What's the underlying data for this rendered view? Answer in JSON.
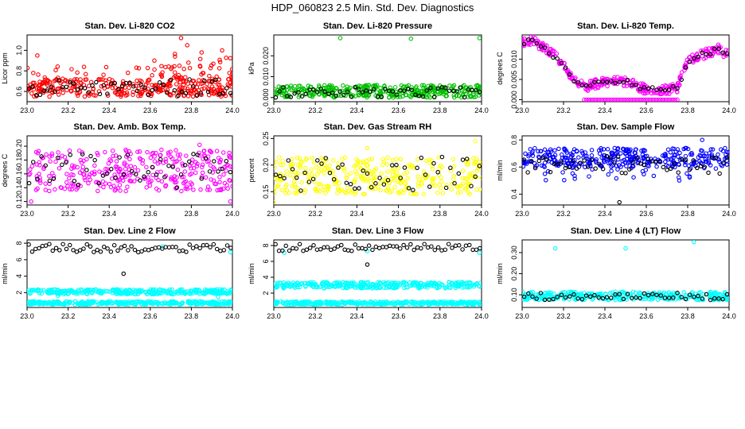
{
  "title": "HDP_060823  2.5 Min. Std. Dev. Diagnostics",
  "chart_data": [
    {
      "type": "scatter",
      "title": "Stan. Dev. Li-820 CO2",
      "ylabel": "Licor ppm",
      "color": "#ff0000",
      "xlim": [
        23.0,
        24.0
      ],
      "ylim": [
        0.5,
        1.15
      ],
      "xticks": [
        "23.0",
        "23.2",
        "23.4",
        "23.6",
        "23.8",
        "24.0"
      ],
      "yticks": [
        {
          "v": 0.6,
          "label": "0.6"
        },
        {
          "v": 0.8,
          "label": "0.8"
        },
        {
          "v": 1.0,
          "label": "1.0"
        }
      ],
      "bands": [
        {
          "lo": 0.55,
          "hi": 0.72,
          "n": 300
        },
        {
          "lo": 0.72,
          "hi": 0.85,
          "n": 40
        }
      ],
      "trend": {
        "start": 23.7,
        "end": 24.0,
        "add": 0.25,
        "n": 40
      },
      "outliers": [
        [
          23.75,
          1.12
        ],
        [
          23.85,
          0.98
        ],
        [
          23.78,
          1.05
        ],
        [
          23.95,
          1.0
        ],
        [
          23.05,
          0.95
        ],
        [
          23.62,
          0.9
        ]
      ],
      "black_band": {
        "lo": 0.55,
        "hi": 0.72,
        "n": 55
      }
    },
    {
      "type": "scatter",
      "title": "Stan. Dev. Li-820 Pressure",
      "ylabel": "kPa",
      "color": "#00c000",
      "xlim": [
        23.0,
        24.0
      ],
      "ylim": [
        -0.002,
        0.03
      ],
      "xticks": [
        "23.0",
        "23.2",
        "23.4",
        "23.6",
        "23.8",
        "24.0"
      ],
      "yticks": [
        {
          "v": 0.0,
          "label": "0.000"
        },
        {
          "v": 0.01,
          "label": "0.010"
        },
        {
          "v": 0.02,
          "label": "0.020"
        }
      ],
      "bands": [
        {
          "lo": 0.0,
          "hi": 0.006,
          "n": 360
        }
      ],
      "outliers": [
        [
          23.32,
          0.0285
        ],
        [
          23.66,
          0.0282
        ],
        [
          23.99,
          0.0285
        ]
      ],
      "black_band": {
        "lo": 0.0,
        "hi": 0.005,
        "n": 55
      }
    },
    {
      "type": "scatter",
      "title": "Stan. Dev. Li-820 Temp.",
      "ylabel": "degrees C",
      "color": "#ff00ff",
      "xlim": [
        23.0,
        24.0
      ],
      "ylim": [
        -0.0005,
        0.016
      ],
      "xticks": [
        "23.0",
        "23.2",
        "23.4",
        "23.6",
        "23.8",
        "24.0"
      ],
      "yticks": [
        {
          "v": 0.0,
          "label": "0.000"
        },
        {
          "v": 0.005,
          "label": "0.005"
        },
        {
          "v": 0.01,
          "label": "0.010"
        }
      ],
      "curve": [
        [
          23.0,
          0.014
        ],
        [
          23.05,
          0.015
        ],
        [
          23.1,
          0.013
        ],
        [
          23.15,
          0.011
        ],
        [
          23.2,
          0.009
        ],
        [
          23.25,
          0.005
        ],
        [
          23.3,
          0.003
        ],
        [
          23.4,
          0.0045
        ],
        [
          23.5,
          0.0045
        ],
        [
          23.6,
          0.0025
        ],
        [
          23.7,
          0.0025
        ],
        [
          23.75,
          0.003
        ],
        [
          23.8,
          0.009
        ],
        [
          23.85,
          0.011
        ],
        [
          23.9,
          0.0115
        ],
        [
          23.95,
          0.0125
        ],
        [
          24.0,
          0.011
        ]
      ],
      "curve_n": 320,
      "curve_noise": 0.0012,
      "extra_rows": [
        {
          "y": 0.0,
          "x0": 23.3,
          "x1": 23.75,
          "n": 45
        }
      ],
      "black_band": {
        "lo": 0.0,
        "hi": 0.0,
        "n": 50,
        "follow_curve": true
      }
    },
    {
      "type": "scatter",
      "title": "Stan. Dev. Amb. Box Temp.",
      "ylabel": "degrees C",
      "color": "#ff00ff",
      "xlim": [
        23.0,
        24.0
      ],
      "ylim": [
        0.115,
        0.215
      ],
      "xticks": [
        "23.0",
        "23.2",
        "23.4",
        "23.6",
        "23.8",
        "24.0"
      ],
      "yticks": [
        {
          "v": 0.12,
          "label": "0.12"
        },
        {
          "v": 0.14,
          "label": "0.14"
        },
        {
          "v": 0.16,
          "label": "0.16"
        },
        {
          "v": 0.18,
          "label": "0.18"
        },
        {
          "v": 0.2,
          "label": "0.20"
        }
      ],
      "bands": [
        {
          "lo": 0.135,
          "hi": 0.195,
          "n": 320
        }
      ],
      "outliers": [
        [
          23.99,
          0.12
        ],
        [
          23.02,
          0.12
        ],
        [
          23.84,
          0.202
        ]
      ],
      "black_band": {
        "lo": 0.14,
        "hi": 0.19,
        "n": 50
      }
    },
    {
      "type": "scatter",
      "title": "Stan. Dev. Gas Stream RH",
      "ylabel": "percent",
      "color": "#ffff00",
      "xlim": [
        23.0,
        24.0
      ],
      "ylim": [
        0.125,
        0.255
      ],
      "xticks": [
        "23.0",
        "23.2",
        "23.4",
        "23.6",
        "23.8",
        "24.0"
      ],
      "yticks": [
        {
          "v": 0.15,
          "label": "0.15"
        },
        {
          "v": 0.2,
          "label": "0.20"
        },
        {
          "v": 0.25,
          "label": "0.25"
        }
      ],
      "bands": [
        {
          "lo": 0.145,
          "hi": 0.215,
          "n": 340
        }
      ],
      "outliers": [
        [
          23.97,
          0.245
        ],
        [
          23.0,
          0.13
        ],
        [
          23.45,
          0.232
        ]
      ],
      "black_band": {
        "lo": 0.15,
        "hi": 0.22,
        "n": 50
      }
    },
    {
      "type": "scatter",
      "title": "Stan. Dev. Sample Flow",
      "ylabel": "ml/min",
      "color": "#0000ff",
      "xlim": [
        23.0,
        24.0
      ],
      "ylim": [
        0.32,
        0.83
      ],
      "xticks": [
        "23.0",
        "23.2",
        "23.4",
        "23.6",
        "23.8",
        "24.0"
      ],
      "yticks": [
        {
          "v": 0.4,
          "label": "0.4"
        },
        {
          "v": 0.6,
          "label": "0.6"
        },
        {
          "v": 0.8,
          "label": "0.8"
        }
      ],
      "bands": [
        {
          "lo": 0.6,
          "hi": 0.74,
          "n": 340
        },
        {
          "lo": 0.5,
          "hi": 0.6,
          "n": 30
        }
      ],
      "outliers": [
        [
          23.87,
          0.8
        ],
        [
          23.11,
          0.55
        ]
      ],
      "black_band": {
        "lo": 0.55,
        "hi": 0.68,
        "n": 55
      },
      "black_outliers": [
        [
          23.47,
          0.34
        ]
      ]
    },
    {
      "type": "scatter",
      "title": "Stan. Dev. Line 2 Flow",
      "ylabel": "ml/min",
      "color": "#00ffff",
      "xlim": [
        23.0,
        24.0
      ],
      "ylim": [
        0.2,
        8.4
      ],
      "xticks": [
        "23.0",
        "23.2",
        "23.4",
        "23.6",
        "23.8",
        "24.0"
      ],
      "yticks": [
        {
          "v": 2,
          "label": "2"
        },
        {
          "v": 4,
          "label": "4"
        },
        {
          "v": 6,
          "label": "6"
        },
        {
          "v": 8,
          "label": "8"
        }
      ],
      "bands": [
        {
          "lo": 1.8,
          "hi": 2.4,
          "n": 330
        },
        {
          "lo": 0.55,
          "hi": 0.95,
          "n": 330
        }
      ],
      "outliers": [
        [
          23.99,
          6.9
        ],
        [
          23.66,
          7.6
        ],
        [
          23.15,
          1.6
        ],
        [
          23.93,
          1.5
        ]
      ],
      "black_band": {
        "lo": 6.9,
        "hi": 7.9,
        "n": 60
      },
      "black_outliers": [
        [
          23.47,
          4.3
        ]
      ]
    },
    {
      "type": "scatter",
      "title": "Stan. Dev. Line 3 Flow",
      "ylabel": "ml/min",
      "color": "#00ffff",
      "xlim": [
        23.0,
        24.0
      ],
      "ylim": [
        0.2,
        8.7
      ],
      "xticks": [
        "23.0",
        "23.2",
        "23.4",
        "23.6",
        "23.8",
        "24.0"
      ],
      "yticks": [
        {
          "v": 2,
          "label": "2"
        },
        {
          "v": 4,
          "label": "4"
        },
        {
          "v": 6,
          "label": "6"
        },
        {
          "v": 8,
          "label": "8"
        }
      ],
      "bands": [
        {
          "lo": 2.6,
          "hi": 3.4,
          "n": 330
        },
        {
          "lo": 0.55,
          "hi": 0.95,
          "n": 330
        }
      ],
      "outliers": [
        [
          23.05,
          7.1
        ],
        [
          23.99,
          7.1
        ],
        [
          23.45,
          7.3
        ]
      ],
      "black_band": {
        "lo": 7.3,
        "hi": 8.2,
        "n": 60
      },
      "black_outliers": [
        [
          23.45,
          5.6
        ]
      ]
    },
    {
      "type": "scatter",
      "title": "Stan. Dev. Line 4 (LT) Flow",
      "ylabel": "ml/min",
      "color": "#00ffff",
      "xlim": [
        23.0,
        24.0
      ],
      "ylim": [
        0.04,
        0.36
      ],
      "xticks": [
        "23.0",
        "23.2",
        "23.4",
        "23.6",
        "23.8",
        "24.0"
      ],
      "yticks": [
        {
          "v": 0.1,
          "label": "0.10"
        },
        {
          "v": 0.2,
          "label": "0.20"
        },
        {
          "v": 0.3,
          "label": "0.30"
        }
      ],
      "bands": [
        {
          "lo": 0.075,
          "hi": 0.115,
          "n": 330
        }
      ],
      "outliers": [
        [
          23.16,
          0.32
        ],
        [
          23.5,
          0.32
        ],
        [
          23.83,
          0.35
        ]
      ],
      "black_band": {
        "lo": 0.075,
        "hi": 0.11,
        "n": 50
      }
    }
  ]
}
